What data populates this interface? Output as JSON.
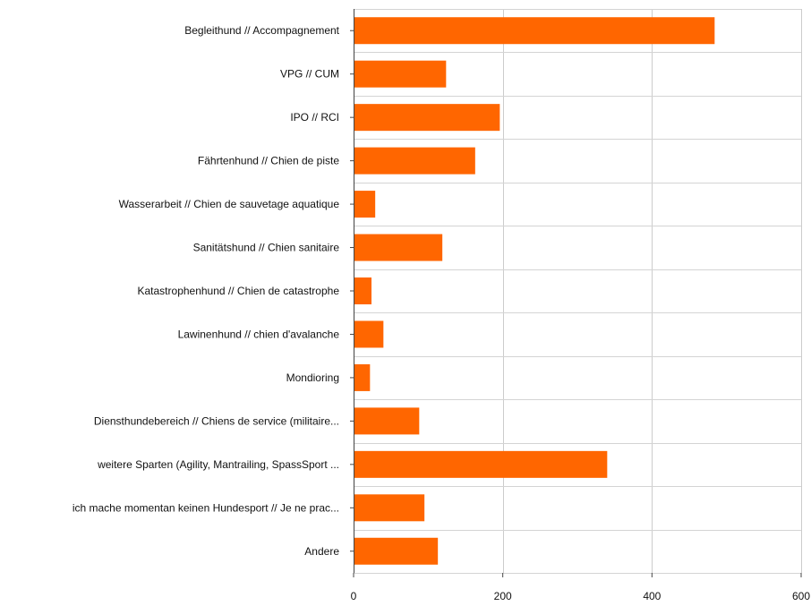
{
  "chart_data": {
    "type": "bar",
    "orientation": "horizontal",
    "categories": [
      "Begleithund // Accompagnement",
      "VPG // CUM",
      "IPO // RCI",
      "Fährtenhund // Chien de piste",
      "Wasserarbeit // Chien de sauvetage aquatique",
      "Sanitätshund // Chien sanitaire",
      "Katastrophenhund // Chien de catastrophe",
      "Lawinenhund // chien d'avalanche",
      "Mondioring",
      "Diensthundebereich // Chiens de service (militaire...",
      "weitere Sparten (Agility, Mantrailing, SpassSport ...",
      "ich mache momentan keinen Hundesport // Je ne prac...",
      "Andere"
    ],
    "values": [
      484,
      124,
      196,
      163,
      29,
      119,
      24,
      40,
      22,
      88,
      340,
      95,
      113
    ],
    "xlim": [
      0,
      600
    ],
    "xticks": [
      0,
      200,
      400,
      600
    ],
    "grid": true,
    "bar_color": "#ff6600",
    "title": "",
    "xlabel": "",
    "ylabel": ""
  }
}
